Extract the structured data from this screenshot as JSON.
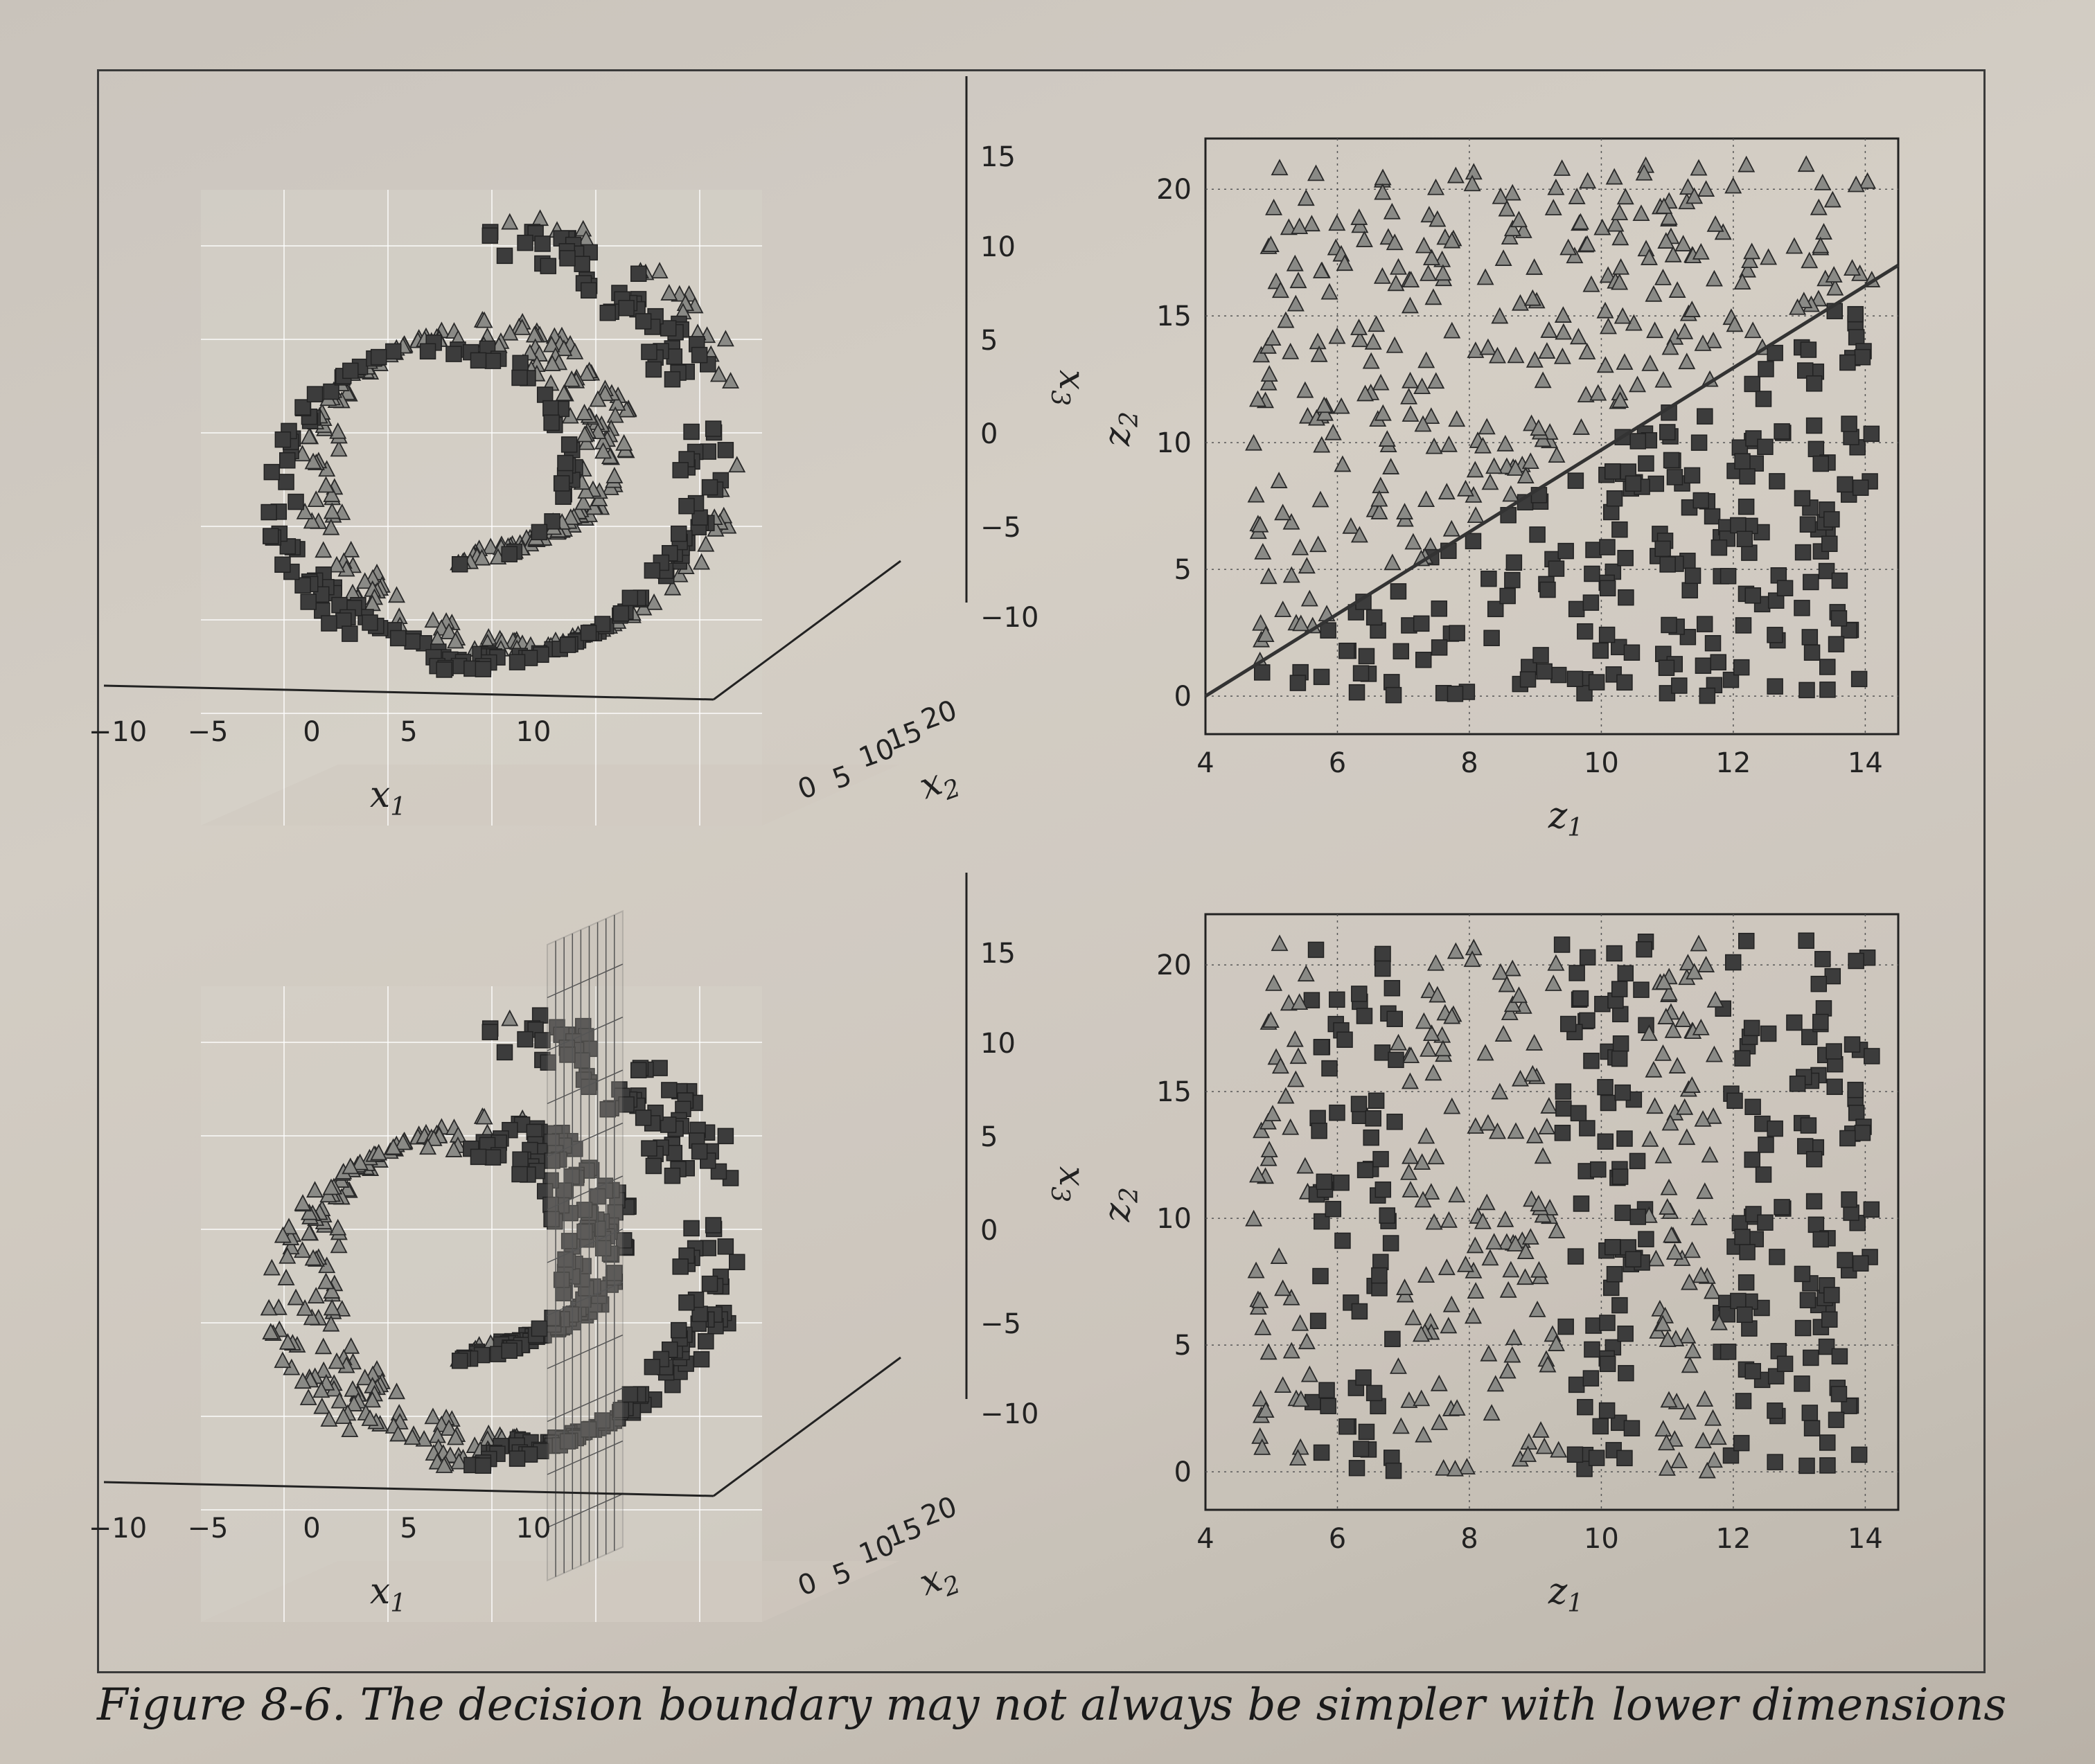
{
  "caption": "Figure 8-6. The decision boundary may not always be simpler with lower dimensions",
  "colors": {
    "square": "#3c3c3c",
    "triangle": "#8a8a86",
    "pane": "#d6d1c9"
  },
  "panels": [
    {
      "id": "top-left-3d",
      "xlabel": "x1",
      "ylabel": "x2",
      "zlabel": "x3",
      "x_ticks": [
        "−10",
        "−5",
        "0",
        "5",
        "10"
      ],
      "y_ticks": [
        "0",
        "5",
        "10",
        "15",
        "20"
      ],
      "z_ticks": [
        "15",
        "10",
        "5",
        "0",
        "−5",
        "−10"
      ],
      "boundary": "none"
    },
    {
      "id": "top-right-2d",
      "xlabel": "z1",
      "ylabel": "z2",
      "x_ticks": [
        "4",
        "6",
        "8",
        "10",
        "12",
        "14"
      ],
      "y_ticks": [
        "20",
        "15",
        "10",
        "5",
        "0"
      ],
      "xlim": [
        4,
        14.5
      ],
      "ylim": [
        -1.5,
        22
      ],
      "boundary": "line from (4, 0) to (14.5, 17)"
    },
    {
      "id": "bottom-left-3d",
      "xlabel": "x1",
      "ylabel": "x2",
      "zlabel": "x3",
      "x_ticks": [
        "−10",
        "−5",
        "0",
        "5",
        "10"
      ],
      "y_ticks": [
        "0",
        "5",
        "10",
        "15",
        "20"
      ],
      "z_ticks": [
        "15",
        "10",
        "5",
        "0",
        "−5",
        "−10"
      ],
      "boundary": "vertical plane at x1 = 5"
    },
    {
      "id": "bottom-right-2d",
      "xlabel": "z1",
      "ylabel": "z2",
      "x_ticks": [
        "4",
        "6",
        "8",
        "10",
        "12",
        "14"
      ],
      "y_ticks": [
        "20",
        "15",
        "10",
        "5",
        "0"
      ],
      "xlim": [
        4,
        14.5
      ],
      "ylim": [
        -1.5,
        22
      ],
      "boundary": "none (class depends on z1 periodically)"
    }
  ],
  "chart_data": [
    {
      "type": "scatter",
      "title": "",
      "xlabel": "x1",
      "ylabel": "x2",
      "zlabel": "x3",
      "xlim": [
        -10,
        12
      ],
      "ylim": [
        0,
        20
      ],
      "zlim": [
        -12,
        15
      ],
      "series": [
        {
          "name": "",
          "values": []
        },
        {
          "name": "",
          "values": []
        }
      ],
      "note_shape": "Swiss roll; squares where the unrolled point lies below z2 = 1.62·(z1 − 4)"
    },
    {
      "type": "scatter",
      "title": "",
      "xlabel": "z1",
      "ylabel": "z2",
      "xlim": [
        4,
        14.5
      ],
      "ylim": [
        -1.5,
        22
      ],
      "boundary_line": {
        "x": [
          4,
          14.5
        ],
        "y": [
          0,
          17
        ]
      }
    },
    {
      "type": "scatter",
      "title": "",
      "xlabel": "x1",
      "ylabel": "x2",
      "zlabel": "x3",
      "xlim": [
        -10,
        12
      ],
      "ylim": [
        0,
        20
      ],
      "zlim": [
        -12,
        15
      ],
      "boundary_plane": {
        "x1": 5
      }
    },
    {
      "type": "scatter",
      "title": "",
      "xlabel": "z1",
      "ylabel": "z2",
      "xlim": [
        4,
        14.5
      ],
      "ylim": [
        -1.5,
        22
      ]
    }
  ]
}
